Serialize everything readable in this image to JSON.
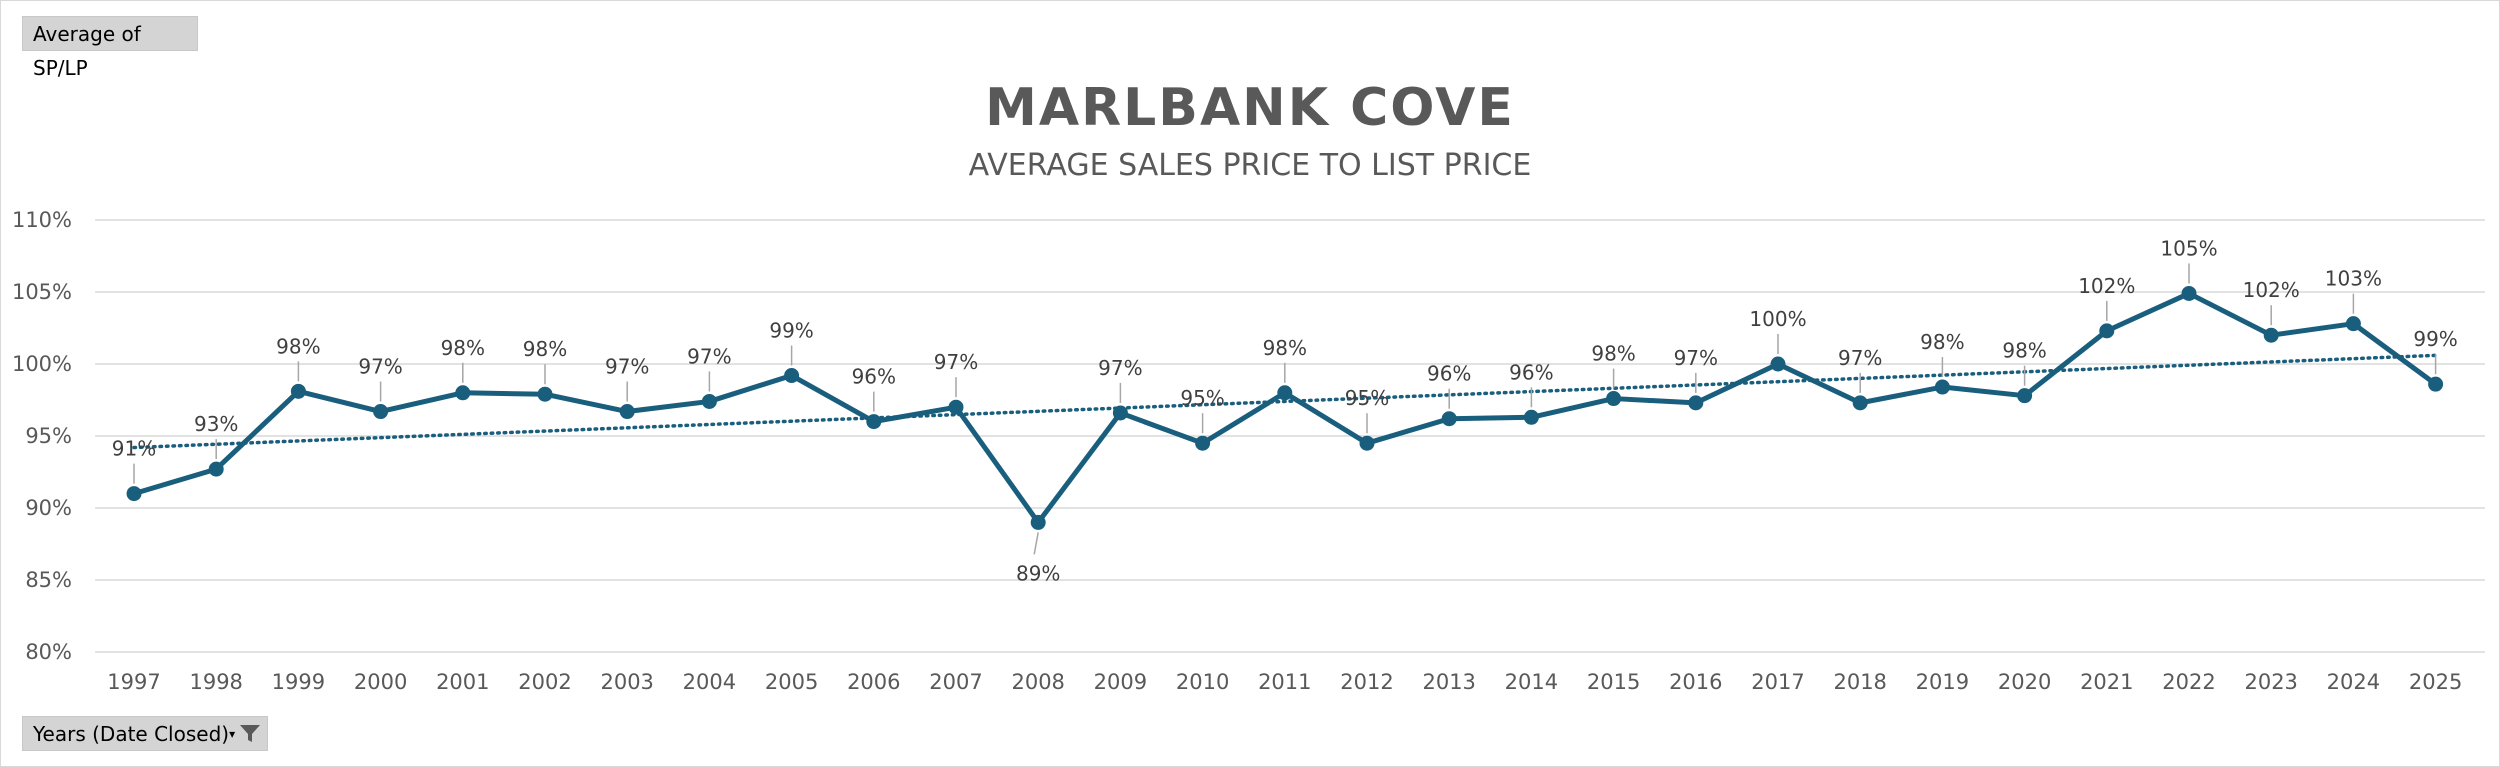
{
  "field_buttons": {
    "measure": "Average of SP/LP",
    "years": "Years (Date Closed)",
    "years_dropdown_icon": "dropdown-arrow-icon",
    "years_filter_icon": "filter-icon"
  },
  "colors": {
    "series": "#1a5e7e",
    "trend": "#1a5e7e",
    "grid": "#d9d9d9",
    "text": "#595959"
  },
  "chart_data": {
    "type": "line",
    "title": "MARLBANK COVE",
    "subtitle": "AVERAGE SALES PRICE TO LIST PRICE",
    "xlabel": "",
    "ylabel": "",
    "ylim": [
      80,
      110
    ],
    "yticks": [
      80,
      85,
      90,
      95,
      100,
      105,
      110
    ],
    "ytick_labels": [
      "80%",
      "85%",
      "90%",
      "95%",
      "100%",
      "105%",
      "110%"
    ],
    "categories": [
      "1997",
      "1998",
      "1999",
      "2000",
      "2001",
      "2002",
      "2003",
      "2004",
      "2005",
      "2006",
      "2007",
      "2008",
      "2009",
      "2010",
      "2011",
      "2012",
      "2013",
      "2014",
      "2015",
      "2016",
      "2017",
      "2018",
      "2019",
      "2020",
      "2021",
      "2022",
      "2023",
      "2024",
      "2025"
    ],
    "series": [
      {
        "name": "Average of SP/LP",
        "values": [
          91.0,
          92.7,
          98.1,
          96.7,
          98.0,
          97.9,
          96.7,
          97.4,
          99.2,
          96.0,
          97.0,
          89.0,
          96.6,
          94.5,
          98.0,
          94.5,
          96.2,
          96.3,
          97.6,
          97.3,
          100.0,
          97.3,
          98.4,
          97.8,
          102.3,
          104.9,
          102.0,
          102.8,
          98.6
        ],
        "labels": [
          "91%",
          "93%",
          "98%",
          "97%",
          "98%",
          "98%",
          "97%",
          "97%",
          "99%",
          "96%",
          "97%",
          "89%",
          "97%",
          "95%",
          "98%",
          "95%",
          "96%",
          "96%",
          "98%",
          "97%",
          "100%",
          "97%",
          "98%",
          "98%",
          "102%",
          "105%",
          "102%",
          "103%",
          "99%"
        ]
      }
    ],
    "trendline": {
      "type": "linear",
      "start": 94.2,
      "end": 100.6
    },
    "grid": true,
    "legend": "none"
  }
}
